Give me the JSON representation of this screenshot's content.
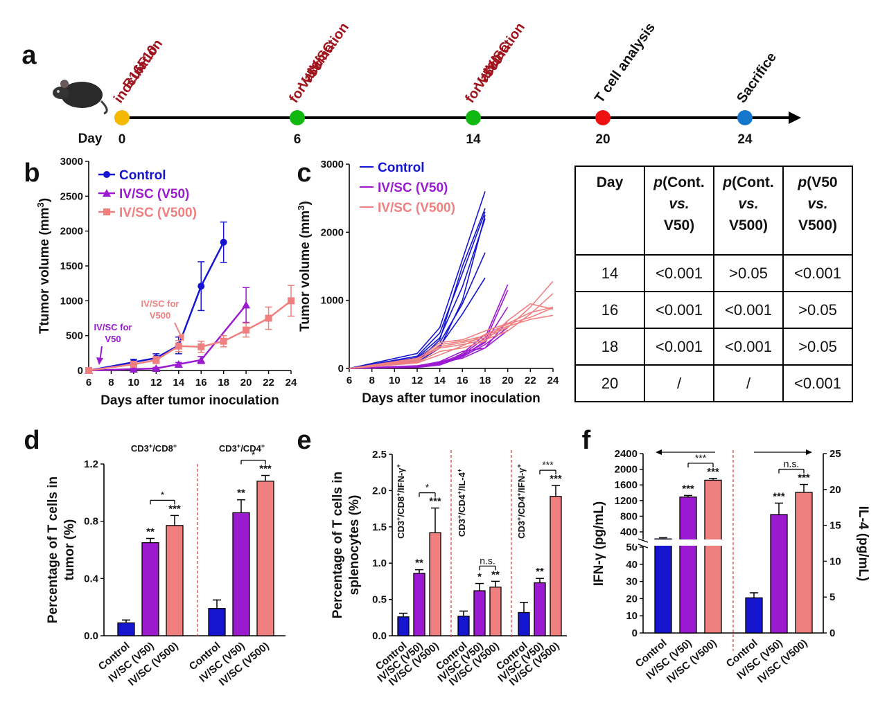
{
  "panel_labels": {
    "a": "a",
    "b": "b",
    "c": "c",
    "d": "d",
    "e": "e",
    "f": "f"
  },
  "colors": {
    "control": "#1515d0",
    "v50": "#9b1ad0",
    "v500": "#f08080",
    "timeline_red": "#a0141e",
    "yellow": "#f5b800",
    "green": "#11b811",
    "red": "#ee1111",
    "blue": "#1577cc"
  },
  "icons": {
    "mouse": "mouse-icon"
  },
  "timeline": {
    "day_label": "Day",
    "events": [
      {
        "day": "0",
        "lines": [
          "B16F10",
          "inoculation"
        ],
        "color_key": "yellow",
        "text_style": "red"
      },
      {
        "day": "6",
        "lines": [
          "IV/SC",
          "Vaccination",
          "for V50"
        ],
        "color_key": "green",
        "text_style": "red"
      },
      {
        "day": "14",
        "lines": [
          "IV/SC",
          "Vaccination",
          "for V500"
        ],
        "color_key": "green",
        "text_style": "red"
      },
      {
        "day": "20",
        "lines": [
          "T cell analysis"
        ],
        "color_key": "red",
        "text_style": "black"
      },
      {
        "day": "24",
        "lines": [
          "Sacrifice"
        ],
        "color_key": "blue",
        "text_style": "black"
      }
    ]
  },
  "table": {
    "headers": [
      [
        "Day"
      ],
      [
        "p(Cont.",
        "vs.",
        "V50)"
      ],
      [
        "p(Cont.",
        "vs.",
        "V500)"
      ],
      [
        "p(V50",
        "vs.",
        "V500)"
      ]
    ],
    "rows": [
      [
        "14",
        "<0.001",
        ">0.05",
        "<0.001"
      ],
      [
        "16",
        "<0.001",
        "<0.001",
        ">0.05"
      ],
      [
        "18",
        "<0.001",
        "<0.001",
        ">0.05"
      ],
      [
        "20",
        "/",
        "/",
        "<0.001"
      ]
    ]
  },
  "chart_data": [
    {
      "id": "b",
      "type": "line",
      "xlabel": "Days after tumor inoculation",
      "ylabel": "Ttumor volume (mm3)",
      "ylabel_main": "Ttumor volume (mm",
      "ylabel_sup": "3",
      "ylabel_end": ")",
      "xlim": [
        6,
        24
      ],
      "ylim": [
        0,
        3000
      ],
      "xticks": [
        6,
        8,
        10,
        12,
        14,
        16,
        18,
        20,
        22,
        24
      ],
      "yticks": [
        0,
        500,
        1000,
        1500,
        2000,
        2500,
        3000
      ],
      "series": [
        {
          "name": "Control",
          "color_key": "control",
          "marker": "circle",
          "x": [
            6,
            10,
            12,
            14,
            16,
            18
          ],
          "y": [
            0,
            120,
            180,
            360,
            1210,
            1840
          ],
          "err": [
            0,
            40,
            60,
            120,
            350,
            290
          ]
        },
        {
          "name": "IV/SC (V50)",
          "color_key": "v50",
          "marker": "triangle",
          "x": [
            6,
            10,
            12,
            14,
            16,
            20
          ],
          "y": [
            0,
            20,
            30,
            90,
            150,
            940
          ],
          "err": [
            0,
            10,
            15,
            25,
            50,
            250
          ]
        },
        {
          "name": "IV/SC (V500)",
          "color_key": "v500",
          "marker": "square",
          "x": [
            6,
            10,
            12,
            14,
            16,
            18,
            20,
            22,
            24
          ],
          "y": [
            0,
            90,
            150,
            350,
            340,
            420,
            580,
            750,
            1000
          ],
          "err": [
            0,
            40,
            50,
            80,
            80,
            80,
            100,
            160,
            220
          ]
        }
      ],
      "annotations": [
        {
          "text": [
            "IV/SC for",
            "V50"
          ],
          "color_key": "v50"
        },
        {
          "text": [
            "IV/SC for",
            "V500"
          ],
          "color_key": "v500"
        }
      ]
    },
    {
      "id": "c",
      "type": "line",
      "xlabel": "Days after tumor inoculation",
      "ylabel": "Tumor volume (mm3)",
      "ylabel_main": "Tumor volume (mm",
      "ylabel_sup": "3",
      "ylabel_end": ")",
      "xlim": [
        6,
        24
      ],
      "ylim": [
        0,
        3000
      ],
      "xticks": [
        6,
        8,
        10,
        12,
        14,
        16,
        18,
        20,
        22,
        24
      ],
      "yticks": [
        0,
        1000,
        2000,
        3000
      ],
      "series": [
        {
          "name": "Control",
          "color_key": "control",
          "x": [
            6,
            12,
            14,
            16,
            18
          ],
          "curves": [
            [
              0,
              220,
              600,
              1600,
              2600
            ],
            [
              0,
              180,
              520,
              1400,
              2300
            ],
            [
              0,
              160,
              450,
              1200,
              2200
            ],
            [
              0,
              150,
              380,
              950,
              1700
            ],
            [
              0,
              120,
              330,
              800,
              1330
            ],
            [
              0,
              100,
              420,
              1500,
              2350
            ],
            [
              0,
              90,
              300,
              1000,
              2250
            ]
          ]
        },
        {
          "name": "IV/SC (V50)",
          "color_key": "v50",
          "x": [
            6,
            12,
            14,
            16,
            18,
            20
          ],
          "curves": [
            [
              0,
              40,
              90,
              200,
              450,
              1230
            ],
            [
              0,
              30,
              70,
              180,
              400,
              1150
            ],
            [
              0,
              25,
              80,
              150,
              300,
              700
            ],
            [
              0,
              20,
              60,
              220,
              500,
              650
            ],
            [
              0,
              35,
              100,
              250,
              300,
              560
            ],
            [
              0,
              15,
              50,
              170,
              350,
              600
            ],
            [
              0,
              30,
              80,
              190,
              380,
              900
            ]
          ]
        },
        {
          "name": "IV/SC (V500)",
          "color_key": "v500",
          "x": [
            6,
            12,
            14,
            16,
            18,
            20,
            22,
            24
          ],
          "curves": [
            [
              0,
              150,
              320,
              380,
              450,
              600,
              900,
              1280
            ],
            [
              0,
              120,
              300,
              350,
              420,
              550,
              800,
              1100
            ],
            [
              0,
              100,
              350,
              400,
              480,
              620,
              720,
              780
            ],
            [
              0,
              90,
              250,
              300,
              400,
              700,
              950,
              870
            ],
            [
              0,
              80,
              200,
              330,
              500,
              650,
              750,
              890
            ],
            [
              0,
              130,
              380,
              420,
              550,
              660,
              820,
              900
            ]
          ]
        }
      ]
    },
    {
      "id": "d",
      "type": "bar",
      "ylabel": [
        "Percentage of T cells in",
        "tumor (%)"
      ],
      "ylim": [
        0,
        1.2
      ],
      "yticks": [
        "0.0",
        "0.4",
        "0.8",
        "1.2"
      ],
      "ytick_values": [
        0,
        0.4,
        0.8,
        1.2
      ],
      "categories": [
        "Control",
        "IV/SC (V50)",
        "IV/SC (V500)"
      ],
      "groups": [
        {
          "label_main": "CD3",
          "label_sup1": "+",
          "label_mid": "/CD8",
          "label_sup2": "+",
          "label": "CD3+/CD8+",
          "values": [
            0.09,
            0.65,
            0.77
          ],
          "errors": [
            0.02,
            0.03,
            0.07
          ],
          "stars": [
            "",
            "**",
            "***"
          ],
          "bracket": {
            "from": 1,
            "to": 2,
            "text": "*"
          }
        },
        {
          "label_main": "CD3",
          "label_sup1": "+",
          "label_mid": "/CD4",
          "label_sup2": "+",
          "label": "CD3+/CD4+",
          "values": [
            0.19,
            0.86,
            1.08
          ],
          "errors": [
            0.06,
            0.09,
            0.04
          ],
          "stars": [
            "",
            "**",
            "***"
          ],
          "bracket": {
            "from": 1,
            "to": 2,
            "text": "*"
          }
        }
      ]
    },
    {
      "id": "e",
      "type": "bar",
      "ylabel": [
        "Percentage of T cells in",
        "splenocytes (%)"
      ],
      "ylim": [
        0,
        2.5
      ],
      "yticks": [
        "0.0",
        "0.5",
        "1.0",
        "1.5",
        "2.0",
        "2.5"
      ],
      "ytick_values": [
        0,
        0.5,
        1.0,
        1.5,
        2.0,
        2.5
      ],
      "categories": [
        "Control",
        "IV/SC (V50)",
        "IV/SC (V500)"
      ],
      "groups": [
        {
          "label": "CD3+/CD8+/IFN-γ+",
          "values": [
            0.26,
            0.86,
            1.42
          ],
          "errors": [
            0.05,
            0.05,
            0.34
          ],
          "stars": [
            "",
            "**",
            "***"
          ],
          "bracket": {
            "from": 1,
            "to": 2,
            "text": "*"
          }
        },
        {
          "label": "CD3+/CD4+/IL-4+",
          "values": [
            0.27,
            0.62,
            0.67
          ],
          "errors": [
            0.07,
            0.1,
            0.08
          ],
          "stars": [
            "",
            "*",
            "**"
          ],
          "bracket": {
            "from": 1,
            "to": 2,
            "text": "n.s."
          }
        },
        {
          "label": "CD3+/CD4+/IFN-γ+",
          "values": [
            0.32,
            0.73,
            1.92
          ],
          "errors": [
            0.14,
            0.06,
            0.15
          ],
          "stars": [
            "",
            "**",
            "***"
          ],
          "bracket": {
            "from": 1,
            "to": 2,
            "text": "***"
          }
        }
      ]
    },
    {
      "id": "f",
      "type": "bar",
      "ylabel_left": "IFN-γ (pg/mL)",
      "ylabel_right": "IL-4 (pg/mL)",
      "left_yticks_lower": [
        "0",
        "10",
        "20",
        "30",
        "40",
        "50"
      ],
      "left_yticks_lower_values": [
        0,
        10,
        20,
        30,
        40,
        50
      ],
      "left_yticks_upper": [
        "400",
        "800",
        "1200",
        "1600",
        "2000",
        "2400"
      ],
      "left_yticks_upper_values": [
        400,
        800,
        1200,
        1600,
        2000,
        2400
      ],
      "right_yticks": [
        "0",
        "5",
        "10",
        "15",
        "20",
        "25"
      ],
      "right_ytick_values": [
        0,
        5,
        10,
        15,
        20,
        25
      ],
      "categories": [
        "Control",
        "IV/SC (V50)",
        "IV/SC (V500)"
      ],
      "groups": [
        {
          "label": "IFN-γ",
          "axis": "left",
          "values": [
            220,
            1290,
            1720
          ],
          "errors": [
            30,
            40,
            45
          ],
          "stars": [
            "",
            "***",
            "***"
          ],
          "bracket": {
            "from": 1,
            "to": 2,
            "text": "***"
          }
        },
        {
          "label": "IL-4",
          "axis": "right",
          "values": [
            4.9,
            16.5,
            19.6
          ],
          "errors": [
            0.7,
            1.6,
            1.1
          ],
          "stars": [
            "",
            "***",
            "***"
          ],
          "bracket": {
            "from": 1,
            "to": 2,
            "text": "n.s."
          }
        }
      ]
    }
  ]
}
